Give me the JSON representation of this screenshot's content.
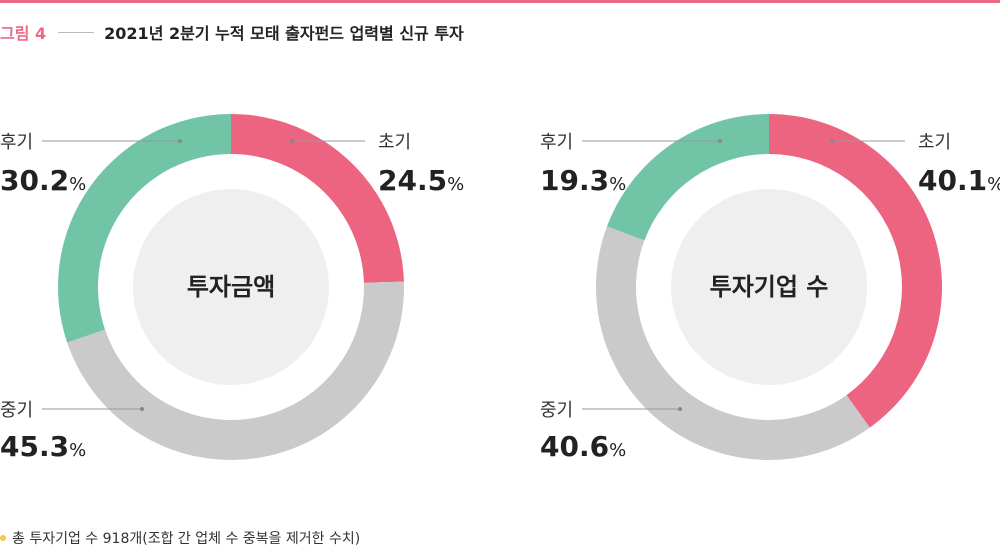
{
  "figure": {
    "label": "그림 4",
    "title": "2021년 2분기 누적 모태 출자펀드 업력별 신규 투자"
  },
  "footnote": "총 투자기업 수 918개(조합 간 업체 수 중복을 제거한 수치)",
  "colors": {
    "accent": "#ec6a86",
    "early": "#ec6480",
    "mid": "#cacacb",
    "late": "#72c4a6",
    "center": "#efefef",
    "bullet": "#f3c94a"
  },
  "chart_data": [
    {
      "type": "pie",
      "center_label": "투자금액",
      "slices": [
        {
          "label": "초기",
          "value": 24.5,
          "value_text": "24.5",
          "unit": "%"
        },
        {
          "label": "중기",
          "value": 45.3,
          "value_text": "45.3",
          "unit": "%"
        },
        {
          "label": "후기",
          "value": 30.2,
          "value_text": "30.2",
          "unit": "%"
        }
      ]
    },
    {
      "type": "pie",
      "center_label": "투자기업 수",
      "slices": [
        {
          "label": "초기",
          "value": 40.1,
          "value_text": "40.1",
          "unit": "%"
        },
        {
          "label": "중기",
          "value": 40.6,
          "value_text": "40.6",
          "unit": "%"
        },
        {
          "label": "후기",
          "value": 19.3,
          "value_text": "19.3",
          "unit": "%"
        }
      ]
    }
  ]
}
